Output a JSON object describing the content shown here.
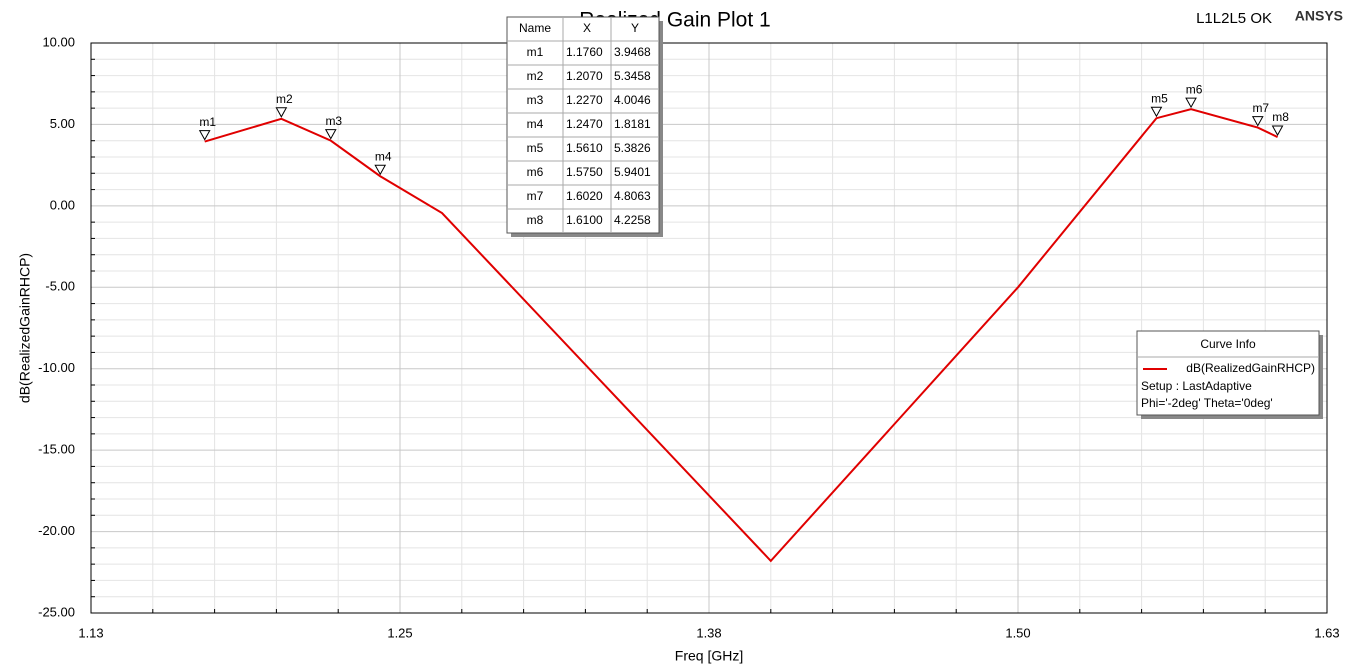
{
  "chart_data": {
    "type": "line",
    "title": "Realized Gain Plot 1",
    "status": "L1L2L5 OK",
    "brand": "ANSYS",
    "x_label": "Freq [GHz]",
    "y_label": "dB(RealizedGainRHCP)",
    "xlim": [
      1.13,
      1.63
    ],
    "ylim": [
      -25,
      10
    ],
    "xticks": [
      1.13,
      {
        "value": 1.255,
        "label": "1.25"
      },
      1.38,
      {
        "value": 1.505,
        "label": "1.50"
      },
      1.63
    ],
    "yticks": [
      {
        "value": 10,
        "label": "10.00"
      },
      {
        "value": 5,
        "label": "5.00"
      },
      {
        "value": 0,
        "label": "0.00"
      },
      {
        "value": -5,
        "label": "-5.00"
      },
      {
        "value": -10,
        "label": "-10.00"
      },
      {
        "value": -15,
        "label": "-15.00"
      },
      {
        "value": -20,
        "label": "-20.00"
      },
      {
        "value": -25,
        "label": "-25.00"
      }
    ],
    "grid": true,
    "minor_divisions": 5,
    "x": [
      1.176,
      1.207,
      1.227,
      1.247,
      1.272,
      1.405,
      1.505,
      1.561,
      1.575,
      1.602,
      1.61
    ],
    "series": [
      {
        "name": "dB(RealizedGainRHCP)",
        "color": "#e00000",
        "values": [
          3.9468,
          5.3458,
          4.0046,
          1.8181,
          -0.44,
          -21.8,
          -5.0,
          5.3826,
          5.9401,
          4.8063,
          4.2258
        ]
      }
    ],
    "legend": {
      "title": "Curve Info",
      "setup": "Setup : LastAdaptive",
      "variables": "Phi='-2deg' Theta='0deg'"
    },
    "marker_table": {
      "headers": [
        "Name",
        "X",
        "Y"
      ]
    },
    "markers": [
      {
        "name": "m1",
        "x": {
          "value": 1.176,
          "label": "1.1760"
        },
        "y": 3.9468
      },
      {
        "name": "m2",
        "x": {
          "value": 1.207,
          "label": "1.2070"
        },
        "y": 5.3458
      },
      {
        "name": "m3",
        "x": {
          "value": 1.227,
          "label": "1.2270"
        },
        "y": 4.0046
      },
      {
        "name": "m4",
        "x": {
          "value": 1.247,
          "label": "1.2470"
        },
        "y": 1.8181
      },
      {
        "name": "m5",
        "x": {
          "value": 1.561,
          "label": "1.5610"
        },
        "y": 5.3826
      },
      {
        "name": "m6",
        "x": {
          "value": 1.575,
          "label": "1.5750"
        },
        "y": 5.9401
      },
      {
        "name": "m7",
        "x": {
          "value": 1.602,
          "label": "1.6020"
        },
        "y": 4.8063
      },
      {
        "name": "m8",
        "x": {
          "value": 1.61,
          "label": "1.6100"
        },
        "y": 4.2258
      }
    ]
  }
}
